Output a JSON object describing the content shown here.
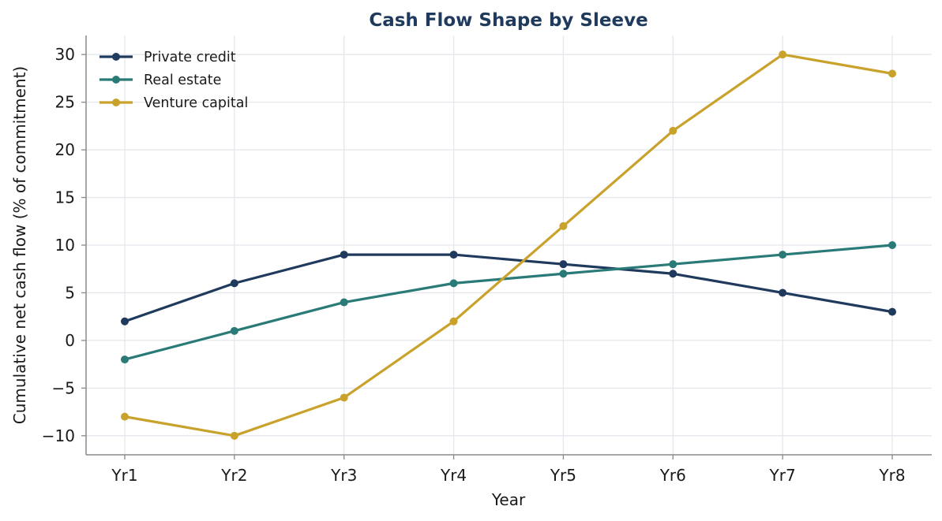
{
  "chart_data": {
    "type": "line",
    "title": "Cash Flow Shape by Sleeve",
    "xlabel": "Year",
    "ylabel": "Cumulative net cash flow (% of commitment)",
    "categories": [
      "Yr1",
      "Yr2",
      "Yr3",
      "Yr4",
      "Yr5",
      "Yr6",
      "Yr7",
      "Yr8"
    ],
    "ylim": [
      -12,
      32
    ],
    "yticks": [
      -10,
      -5,
      0,
      5,
      10,
      15,
      20,
      25,
      30
    ],
    "ytick_labels": [
      "−10",
      "−5",
      "0",
      "5",
      "10",
      "15",
      "20",
      "25",
      "30"
    ],
    "grid": true,
    "legend_position": "top-left",
    "title_color": "#1f3a5c",
    "series": [
      {
        "name": "Private credit",
        "color": "#1f3a5c",
        "values": [
          2,
          6,
          9,
          9,
          8,
          7,
          5,
          3
        ]
      },
      {
        "name": "Real estate",
        "color": "#2a7a78",
        "values": [
          -2,
          1,
          4,
          6,
          7,
          8,
          9,
          10
        ]
      },
      {
        "name": "Venture capital",
        "color": "#c9a22c",
        "values": [
          -8,
          -10,
          -6,
          2,
          12,
          22,
          30,
          28
        ]
      }
    ]
  }
}
